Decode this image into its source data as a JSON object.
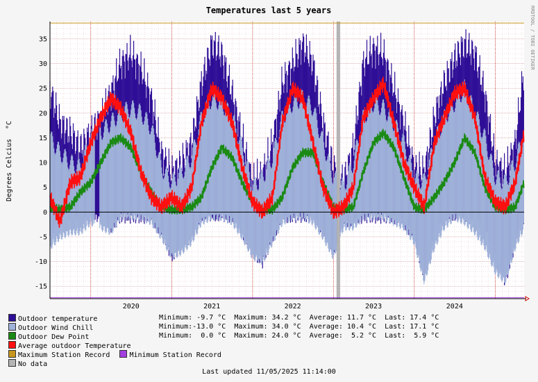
{
  "chart_data": {
    "type": "bar",
    "title": "Temperatures last 5 years",
    "ylabel": "Degrees Celcius",
    "yunit": "°C",
    "side_text": "RRDTOOL / TOBI OETIKER",
    "ylim": [
      -17.5,
      38.5
    ],
    "yticks": [
      -15,
      -10,
      -5,
      0,
      5,
      10,
      15,
      20,
      25,
      30,
      35
    ],
    "xlim": [
      "2019-07-01",
      "2025-05-11"
    ],
    "xticks": [
      {
        "label": "2020",
        "date": "2020-07-01"
      },
      {
        "label": "2021",
        "date": "2021-07-01"
      },
      {
        "label": "2022",
        "date": "2022-07-01"
      },
      {
        "label": "2023",
        "date": "2023-07-01"
      },
      {
        "label": "2024",
        "date": "2024-07-01"
      }
    ],
    "year_boundaries": [
      "2020-01-01",
      "2021-01-01",
      "2022-01-01",
      "2023-01-01",
      "2024-01-01",
      "2025-01-01"
    ],
    "grid": true,
    "max_station_record": 38.2,
    "min_station_record": -17.3,
    "no_data_periods": [
      [
        "2023-01-15",
        "2023-01-31"
      ]
    ],
    "windchill_gap": [
      [
        "2020-01-20",
        "2020-02-10"
      ]
    ],
    "series": [
      {
        "name": "Outdoor temperature",
        "color": "#2e0e96",
        "x": [
          "2019-07-01",
          "2019-08-15",
          "2019-10-01",
          "2019-11-15",
          "2020-01-01",
          "2020-02-15",
          "2020-04-01",
          "2020-05-15",
          "2020-07-01",
          "2020-08-15",
          "2020-10-01",
          "2020-11-15",
          "2021-01-01",
          "2021-02-15",
          "2021-04-01",
          "2021-05-15",
          "2021-07-01",
          "2021-08-15",
          "2021-10-01",
          "2021-11-15",
          "2022-01-01",
          "2022-02-15",
          "2022-04-01",
          "2022-05-15",
          "2022-07-01",
          "2022-08-15",
          "2022-10-01",
          "2022-11-15",
          "2023-01-01",
          "2023-02-15",
          "2023-04-01",
          "2023-05-15",
          "2023-07-01",
          "2023-08-15",
          "2023-10-01",
          "2023-11-15",
          "2024-01-01",
          "2024-02-15",
          "2024-04-01",
          "2024-05-15",
          "2024-07-01",
          "2024-08-15",
          "2024-10-01",
          "2024-11-15",
          "2025-01-01",
          "2025-02-15",
          "2025-04-01",
          "2025-05-11"
        ],
        "max": [
          25,
          18,
          16,
          13,
          16,
          19,
          24,
          30,
          32,
          29,
          23,
          12,
          8,
          10,
          14,
          26,
          34,
          32,
          24,
          15,
          6,
          8,
          14,
          26,
          30,
          34,
          30,
          18,
          9,
          6,
          13,
          30,
          33,
          32,
          25,
          18,
          9,
          8,
          19,
          26,
          31,
          34,
          32,
          24,
          10,
          8,
          14,
          29
        ],
        "min": [
          -4,
          0,
          0,
          0,
          0,
          0,
          -2,
          0,
          0,
          0,
          0,
          -3,
          -8,
          -6,
          -4,
          0,
          0,
          0,
          0,
          -3,
          -7,
          -9,
          -4,
          0,
          0,
          0,
          0,
          -3,
          -7,
          -1,
          -1,
          0,
          0,
          0,
          0,
          -1,
          -4,
          -12,
          -3,
          0,
          0,
          0,
          0,
          -2,
          -8,
          -13,
          -5,
          0
        ]
      },
      {
        "name": "Outdoor Wind Chill",
        "color": "#9fb1d9",
        "x": [
          "2019-07-01",
          "2019-08-15",
          "2019-10-01",
          "2019-11-15",
          "2020-01-01",
          "2020-02-15",
          "2020-04-01",
          "2020-05-15",
          "2020-07-01",
          "2020-08-15",
          "2020-10-01",
          "2020-11-15",
          "2021-01-01",
          "2021-02-15",
          "2021-04-01",
          "2021-05-15",
          "2021-07-01",
          "2021-08-15",
          "2021-10-01",
          "2021-11-15",
          "2022-01-01",
          "2022-02-15",
          "2022-04-01",
          "2022-05-15",
          "2022-07-01",
          "2022-08-15",
          "2022-10-01",
          "2022-11-15",
          "2023-01-01",
          "2023-02-15",
          "2023-04-01",
          "2023-05-15",
          "2023-07-01",
          "2023-08-15",
          "2023-10-01",
          "2023-11-15",
          "2024-01-01",
          "2024-02-15",
          "2024-04-01",
          "2024-05-15",
          "2024-07-01",
          "2024-08-15",
          "2024-10-01",
          "2024-11-15",
          "2025-01-01",
          "2025-02-15",
          "2025-04-01",
          "2025-05-11"
        ],
        "max": [
          15,
          12,
          10,
          9,
          15,
          16,
          18,
          20,
          21,
          20,
          17,
          9,
          6,
          8,
          11,
          19,
          23,
          22,
          19,
          13,
          5,
          7,
          11,
          19,
          22,
          23,
          21,
          14,
          7,
          5,
          10,
          19,
          22,
          21,
          18,
          14,
          7,
          6,
          14,
          19,
          22,
          25,
          20,
          15,
          7,
          6,
          10,
          16
        ],
        "min": [
          -6,
          -4,
          -3,
          -3,
          -1,
          -2,
          -3,
          0,
          0,
          0,
          -1,
          -4,
          -8,
          -7,
          -5,
          -1,
          0,
          0,
          -1,
          -4,
          -8,
          -9,
          -5,
          -1,
          0,
          0,
          -1,
          -4,
          -8,
          -2,
          -2,
          0,
          0,
          0,
          -1,
          -2,
          -5,
          -13,
          -6,
          -2,
          0,
          -1,
          -3,
          -6,
          -11,
          -13,
          -6,
          -2
        ]
      },
      {
        "name": "Outdoor Dew Point",
        "color": "#1b8a14",
        "x": [
          "2019-07-01",
          "2019-08-15",
          "2019-10-01",
          "2019-11-15",
          "2020-01-01",
          "2020-02-15",
          "2020-04-01",
          "2020-05-15",
          "2020-07-01",
          "2020-08-15",
          "2020-10-01",
          "2020-11-15",
          "2021-01-01",
          "2021-02-15",
          "2021-04-01",
          "2021-05-15",
          "2021-07-01",
          "2021-08-15",
          "2021-10-01",
          "2021-11-15",
          "2022-01-01",
          "2022-02-15",
          "2022-04-01",
          "2022-05-15",
          "2022-07-01",
          "2022-08-15",
          "2022-10-01",
          "2022-11-15",
          "2023-01-01",
          "2023-02-15",
          "2023-04-01",
          "2023-05-15",
          "2023-07-01",
          "2023-08-15",
          "2023-10-01",
          "2023-11-15",
          "2024-01-01",
          "2024-02-15",
          "2024-04-01",
          "2024-05-15",
          "2024-07-01",
          "2024-08-15",
          "2024-10-01",
          "2024-11-15",
          "2025-01-01",
          "2025-02-15",
          "2025-04-01",
          "2025-05-11"
        ],
        "values": [
          1,
          0.5,
          1,
          4,
          6,
          10,
          14,
          15,
          13,
          8,
          4,
          1,
          0.5,
          0.5,
          1,
          3,
          9,
          13,
          11,
          6,
          2,
          0.5,
          0.5,
          3,
          9,
          12,
          12,
          6,
          1,
          0.5,
          1,
          8,
          14,
          16,
          13,
          7,
          1,
          0.5,
          3,
          6,
          10,
          15,
          12,
          5,
          1,
          0.5,
          1,
          6
        ]
      },
      {
        "name": "Average outdoor Temperature",
        "color": "#ff1010",
        "x": [
          "2019-07-01",
          "2019-08-15",
          "2019-10-01",
          "2019-11-15",
          "2020-01-01",
          "2020-02-15",
          "2020-04-01",
          "2020-05-15",
          "2020-07-01",
          "2020-08-15",
          "2020-10-01",
          "2020-11-15",
          "2021-01-01",
          "2021-02-15",
          "2021-04-01",
          "2021-05-15",
          "2021-07-01",
          "2021-08-15",
          "2021-10-01",
          "2021-11-15",
          "2022-01-01",
          "2022-02-15",
          "2022-04-01",
          "2022-05-15",
          "2022-07-01",
          "2022-08-15",
          "2022-10-01",
          "2022-11-15",
          "2023-01-01",
          "2023-02-15",
          "2023-04-01",
          "2023-05-15",
          "2023-07-01",
          "2023-08-15",
          "2023-10-01",
          "2023-11-15",
          "2024-01-01",
          "2024-02-15",
          "2024-04-01",
          "2024-05-15",
          "2024-07-01",
          "2024-08-15",
          "2024-10-01",
          "2024-11-15",
          "2025-01-01",
          "2025-02-15",
          "2025-04-01",
          "2025-05-11"
        ],
        "values": [
          3,
          -2,
          6,
          7,
          14,
          19,
          23,
          21,
          16,
          8,
          3,
          1,
          3,
          1,
          5,
          18,
          25,
          23,
          18,
          9,
          2,
          0,
          3,
          18,
          25,
          23,
          14,
          5,
          0,
          1,
          5,
          19,
          23,
          26,
          18,
          10,
          5,
          1,
          14,
          19,
          24,
          25,
          19,
          7,
          2,
          1,
          6,
          16
        ]
      }
    ]
  },
  "legend": [
    {
      "label": "Outdoor temperature",
      "color": "#2e0e96"
    },
    {
      "label": "Outdoor Wind Chill",
      "color": "#9fb1d9"
    },
    {
      "label": "Outdoor Dew Point",
      "color": "#1b8a14"
    },
    {
      "label": "Average outdoor Temperature",
      "color": "#ff1010"
    },
    {
      "label": "Maximum Station Record",
      "color": "#c8961e"
    },
    {
      "label": "No data",
      "color": "#b4b4b4"
    }
  ],
  "legend_extra": {
    "label": "Minimum Station Record",
    "color": "#a33fe0"
  },
  "stats": [
    "Minimum: -9.7 °C  Maximum: 34.2 °C  Average: 11.7 °C  Last: 17.4 °C",
    "Minimum:-13.0 °C  Maximum: 34.0 °C  Average: 10.4 °C  Last: 17.1 °C",
    "Minimum:  0.0 °C  Maximum: 24.0 °C  Average:  5.2 °C  Last:  5.9 °C"
  ],
  "footer": "Last updated 11/05/2025 11:14:00"
}
